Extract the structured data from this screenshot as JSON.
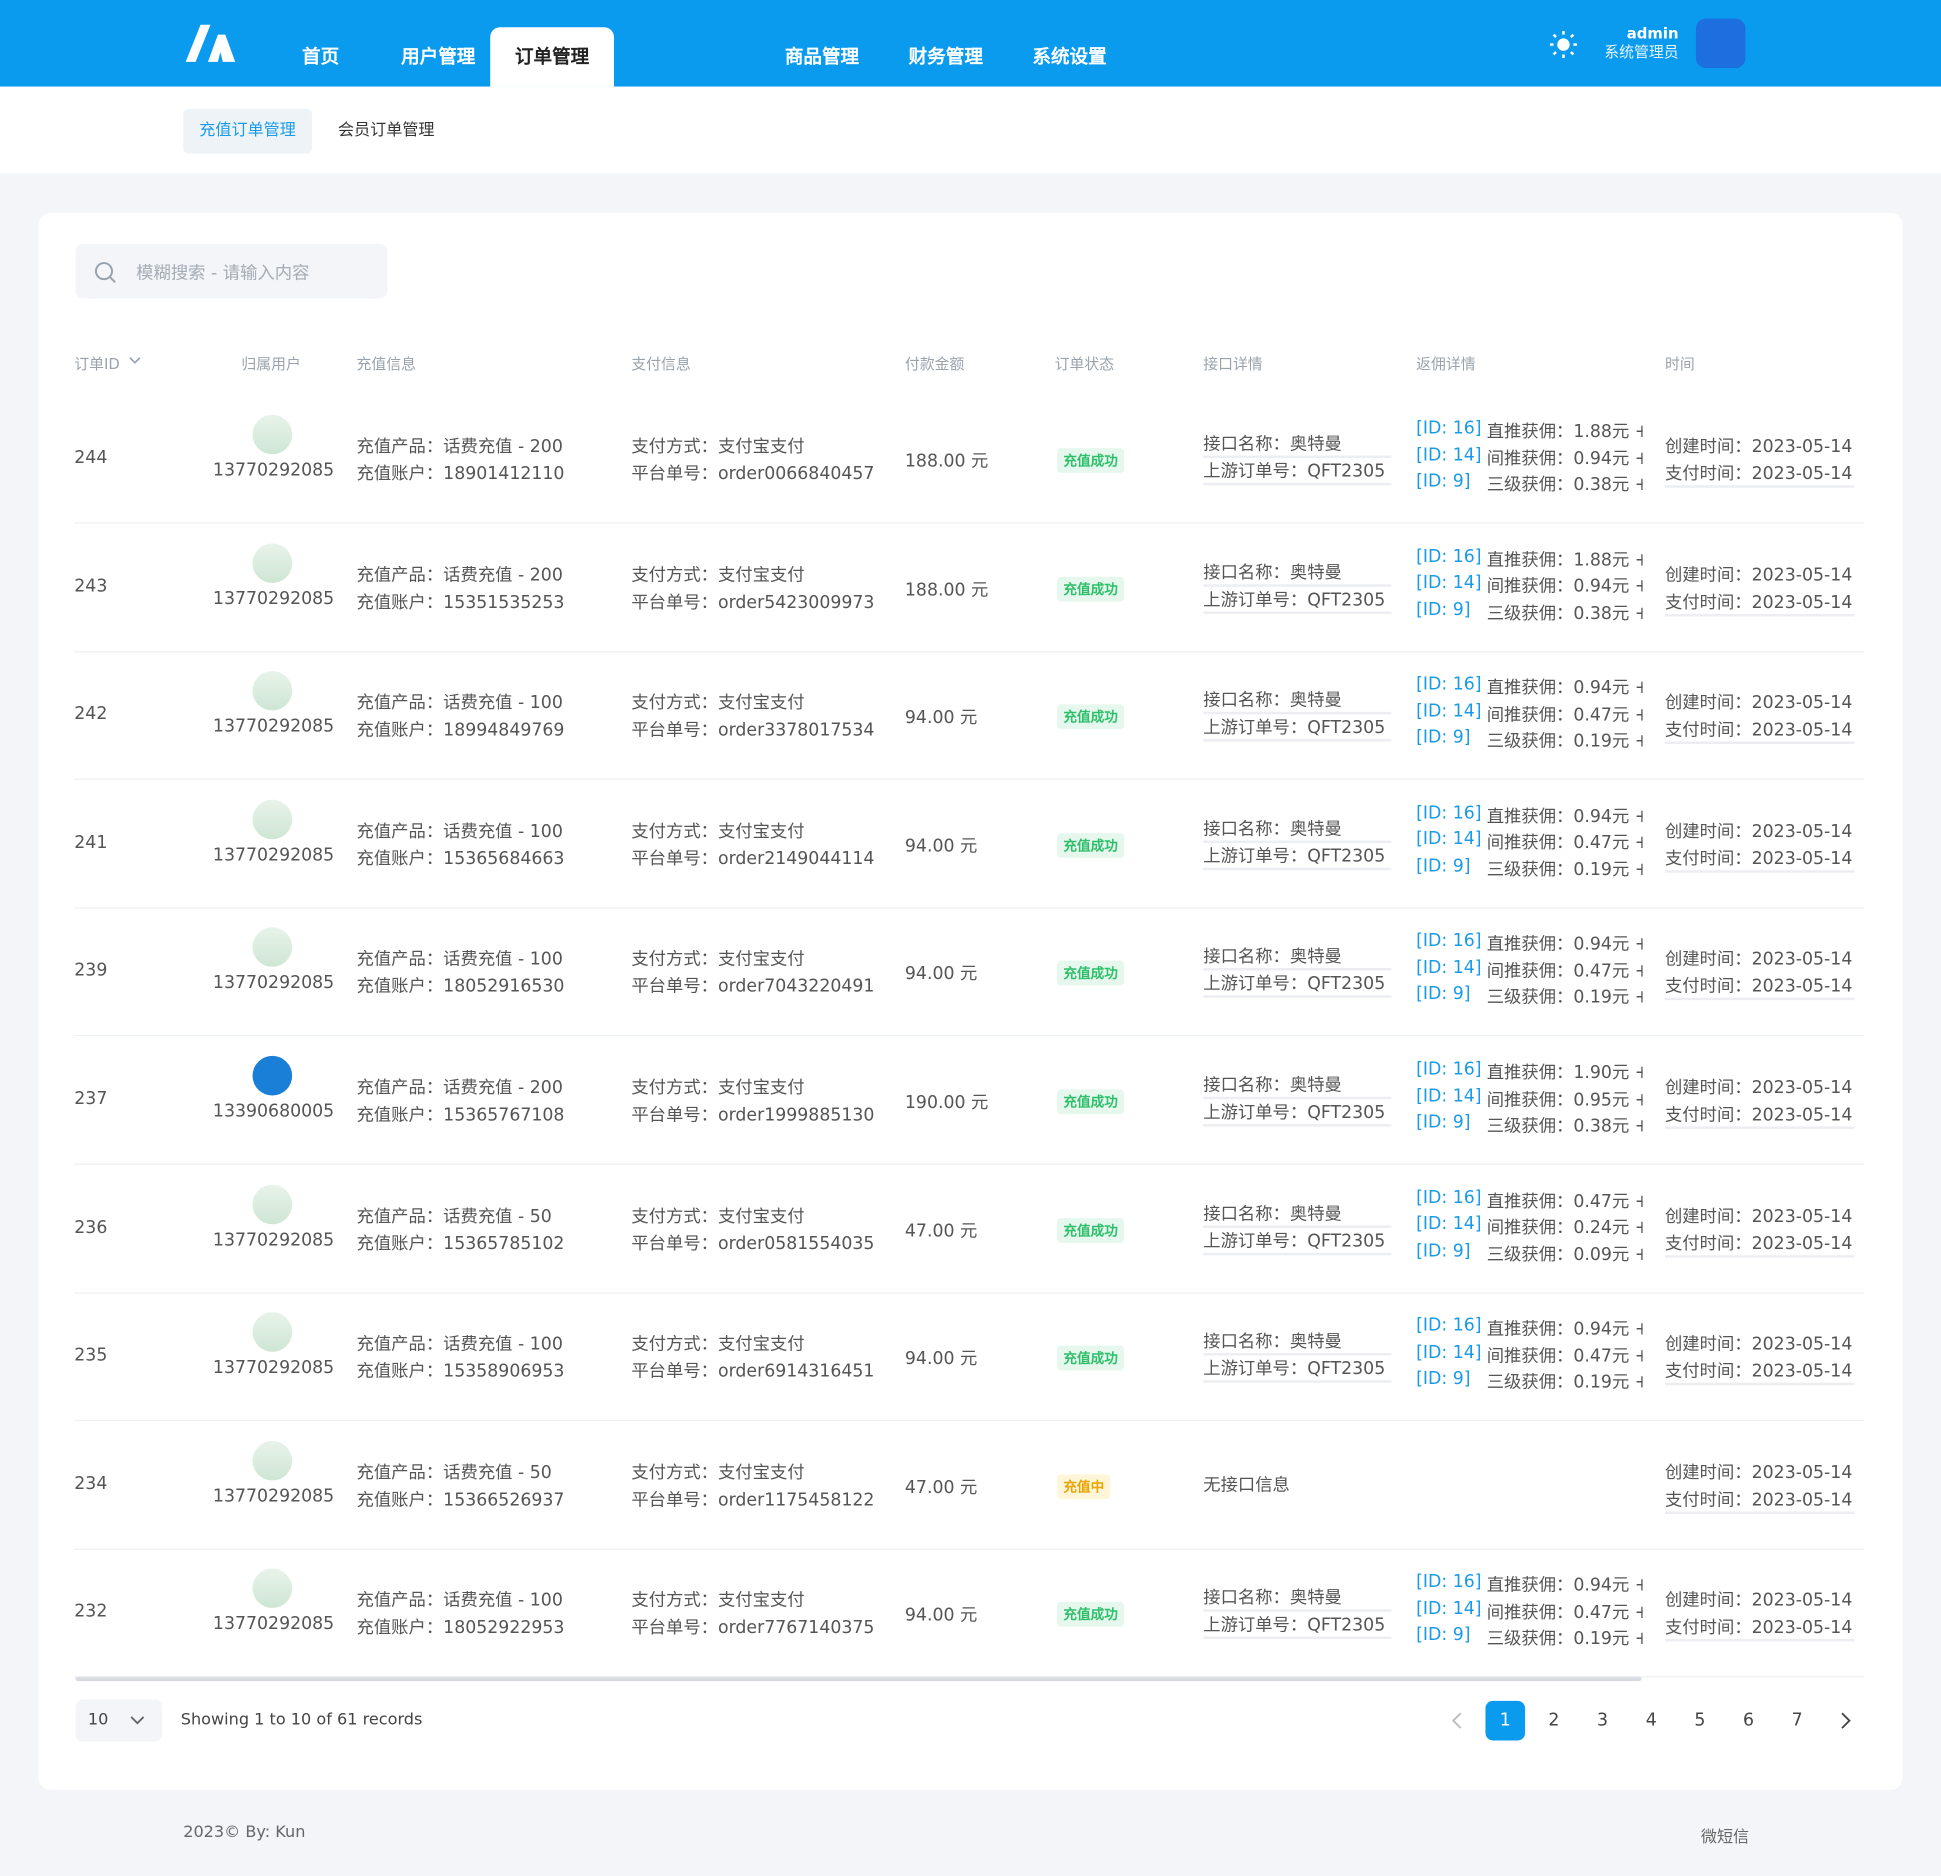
{
  "nav": {
    "items": [
      "首页",
      "用户管理",
      "订单管理",
      "商品管理",
      "财务管理",
      "系统设置"
    ]
  },
  "user": {
    "name": "admin",
    "role": "系统管理员"
  },
  "subnav": [
    "充值订单管理",
    "会员订单管理"
  ],
  "search_placeholder": "模糊搜索 - 请输入内容",
  "columns": [
    "订单ID",
    "归属用户",
    "充值信息",
    "支付信息",
    "付款金额",
    "订单状态",
    "接口详情",
    "返佣详情",
    "时间"
  ],
  "rows": [
    {
      "id": "244",
      "user": "13770292085",
      "product": "充值产品：话费充值 - 200",
      "account": "充值账户：18901412110",
      "pay": "支付方式：支付宝支付",
      "order": "平台单号：order0066840457",
      "amount": "188.00 元",
      "status": "充值成功",
      "iface": [
        "接口名称：奥特曼",
        "上游订单号：QFT2305"
      ],
      "comm": [
        {
          "id": "[ID: 16]",
          "text": "直推获佣：1.88元 +"
        },
        {
          "id": "[ID: 14]",
          "text": "间推获佣：0.94元 +"
        },
        {
          "id": "[ID: 9]",
          "text": "三级获佣：0.38元 +"
        }
      ],
      "created": "创建时间：2023-05-14",
      "paid": "支付时间：2023-05-14"
    },
    {
      "id": "243",
      "user": "13770292085",
      "product": "充值产品：话费充值 - 200",
      "account": "充值账户：15351535253",
      "pay": "支付方式：支付宝支付",
      "order": "平台单号：order5423009973",
      "amount": "188.00 元",
      "status": "充值成功",
      "iface": [
        "接口名称：奥特曼",
        "上游订单号：QFT2305"
      ],
      "comm": [
        {
          "id": "[ID: 16]",
          "text": "直推获佣：1.88元 +"
        },
        {
          "id": "[ID: 14]",
          "text": "间推获佣：0.94元 +"
        },
        {
          "id": "[ID: 9]",
          "text": "三级获佣：0.38元 +"
        }
      ],
      "created": "创建时间：2023-05-14",
      "paid": "支付时间：2023-05-14"
    },
    {
      "id": "242",
      "user": "13770292085",
      "product": "充值产品：话费充值 - 100",
      "account": "充值账户：18994849769",
      "pay": "支付方式：支付宝支付",
      "order": "平台单号：order3378017534",
      "amount": "94.00 元",
      "status": "充值成功",
      "iface": [
        "接口名称：奥特曼",
        "上游订单号：QFT2305"
      ],
      "comm": [
        {
          "id": "[ID: 16]",
          "text": "直推获佣：0.94元 +"
        },
        {
          "id": "[ID: 14]",
          "text": "间推获佣：0.47元 +"
        },
        {
          "id": "[ID: 9]",
          "text": "三级获佣：0.19元 +"
        }
      ],
      "created": "创建时间：2023-05-14",
      "paid": "支付时间：2023-05-14"
    },
    {
      "id": "241",
      "user": "13770292085",
      "product": "充值产品：话费充值 - 100",
      "account": "充值账户：15365684663",
      "pay": "支付方式：支付宝支付",
      "order": "平台单号：order2149044114",
      "amount": "94.00 元",
      "status": "充值成功",
      "iface": [
        "接口名称：奥特曼",
        "上游订单号：QFT2305"
      ],
      "comm": [
        {
          "id": "[ID: 16]",
          "text": "直推获佣：0.94元 +"
        },
        {
          "id": "[ID: 14]",
          "text": "间推获佣：0.47元 +"
        },
        {
          "id": "[ID: 9]",
          "text": "三级获佣：0.19元 +"
        }
      ],
      "created": "创建时间：2023-05-14",
      "paid": "支付时间：2023-05-14"
    },
    {
      "id": "239",
      "user": "13770292085",
      "product": "充值产品：话费充值 - 100",
      "account": "充值账户：18052916530",
      "pay": "支付方式：支付宝支付",
      "order": "平台单号：order7043220491",
      "amount": "94.00 元",
      "status": "充值成功",
      "iface": [
        "接口名称：奥特曼",
        "上游订单号：QFT2305"
      ],
      "comm": [
        {
          "id": "[ID: 16]",
          "text": "直推获佣：0.94元 +"
        },
        {
          "id": "[ID: 14]",
          "text": "间推获佣：0.47元 +"
        },
        {
          "id": "[ID: 9]",
          "text": "三级获佣：0.19元 +"
        }
      ],
      "created": "创建时间：2023-05-14",
      "paid": "支付时间：2023-05-14"
    },
    {
      "id": "237",
      "user": "13390680005",
      "product": "充值产品：话费充值 - 200",
      "account": "充值账户：15365767108",
      "pay": "支付方式：支付宝支付",
      "order": "平台单号：order1999885130",
      "amount": "190.00 元",
      "status": "充值成功",
      "iface": [
        "接口名称：奥特曼",
        "上游订单号：QFT2305"
      ],
      "comm": [
        {
          "id": "[ID: 16]",
          "text": "直推获佣：1.90元 +"
        },
        {
          "id": "[ID: 14]",
          "text": "间推获佣：0.95元 +"
        },
        {
          "id": "[ID: 9]",
          "text": "三级获佣：0.38元 +"
        }
      ],
      "created": "创建时间：2023-05-14",
      "paid": "支付时间：2023-05-14"
    },
    {
      "id": "236",
      "user": "13770292085",
      "product": "充值产品：话费充值 - 50",
      "account": "充值账户：15365785102",
      "pay": "支付方式：支付宝支付",
      "order": "平台单号：order0581554035",
      "amount": "47.00 元",
      "status": "充值成功",
      "iface": [
        "接口名称：奥特曼",
        "上游订单号：QFT2305"
      ],
      "comm": [
        {
          "id": "[ID: 16]",
          "text": "直推获佣：0.47元 +"
        },
        {
          "id": "[ID: 14]",
          "text": "间推获佣：0.24元 +"
        },
        {
          "id": "[ID: 9]",
          "text": "三级获佣：0.09元 +"
        }
      ],
      "created": "创建时间：2023-05-14",
      "paid": "支付时间：2023-05-14"
    },
    {
      "id": "235",
      "user": "13770292085",
      "product": "充值产品：话费充值 - 100",
      "account": "充值账户：15358906953",
      "pay": "支付方式：支付宝支付",
      "order": "平台单号：order6914316451",
      "amount": "94.00 元",
      "status": "充值成功",
      "iface": [
        "接口名称：奥特曼",
        "上游订单号：QFT2305"
      ],
      "comm": [
        {
          "id": "[ID: 16]",
          "text": "直推获佣：0.94元 +"
        },
        {
          "id": "[ID: 14]",
          "text": "间推获佣：0.47元 +"
        },
        {
          "id": "[ID: 9]",
          "text": "三级获佣：0.19元 +"
        }
      ],
      "created": "创建时间：2023-05-14",
      "paid": "支付时间：2023-05-14"
    },
    {
      "id": "234",
      "user": "13770292085",
      "product": "充值产品：话费充值 - 50",
      "account": "充值账户：15366526937",
      "pay": "支付方式：支付宝支付",
      "order": "平台单号：order1175458122",
      "amount": "47.00 元",
      "status": "充值中",
      "iface": [
        "无接口信息"
      ],
      "comm": [],
      "created": "创建时间：2023-05-14",
      "paid": "支付时间：2023-05-14"
    },
    {
      "id": "232",
      "user": "13770292085",
      "product": "充值产品：话费充值 - 100",
      "account": "充值账户：18052922953",
      "pay": "支付方式：支付宝支付",
      "order": "平台单号：order7767140375",
      "amount": "94.00 元",
      "status": "充值成功",
      "iface": [
        "接口名称：奥特曼",
        "上游订单号：QFT2305"
      ],
      "comm": [
        {
          "id": "[ID: 16]",
          "text": "直推获佣：0.94元 +"
        },
        {
          "id": "[ID: 14]",
          "text": "间推获佣：0.47元 +"
        },
        {
          "id": "[ID: 9]",
          "text": "三级获佣：0.19元 +"
        }
      ],
      "created": "创建时间：2023-05-14",
      "paid": "支付时间：2023-05-14"
    }
  ],
  "pagination": {
    "page_size": "10",
    "summary": "Showing 1 to 10 of 61 records",
    "pages": [
      "1",
      "2",
      "3",
      "4",
      "5",
      "6",
      "7"
    ]
  },
  "footer": {
    "left": "2023© By: Kun",
    "right": "微短信"
  }
}
